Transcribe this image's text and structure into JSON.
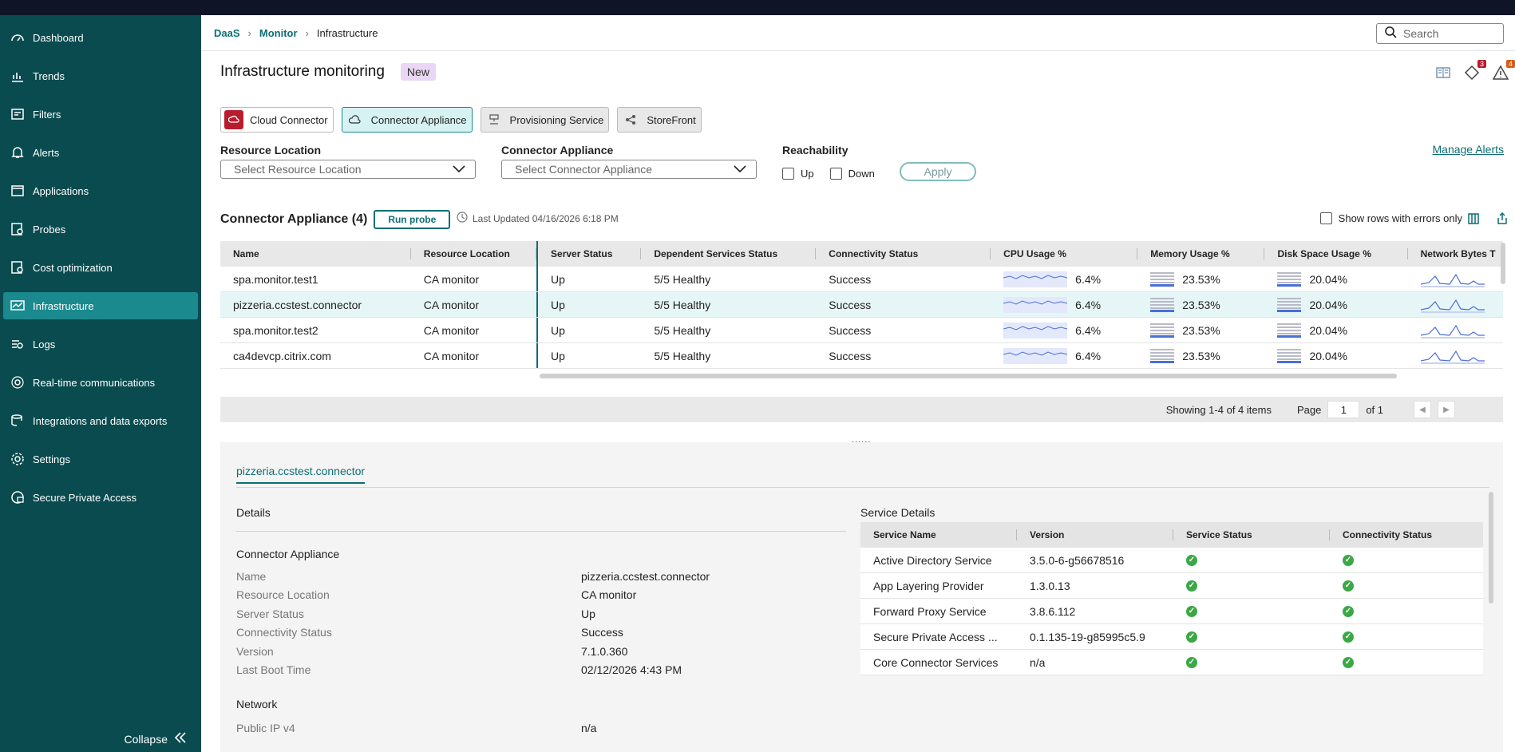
{
  "sidebar": {
    "items": [
      {
        "label": "Dashboard",
        "icon": "dashboard-icon"
      },
      {
        "label": "Trends",
        "icon": "trends-icon"
      },
      {
        "label": "Filters",
        "icon": "filters-icon"
      },
      {
        "label": "Alerts",
        "icon": "bell-icon"
      },
      {
        "label": "Applications",
        "icon": "applications-icon"
      },
      {
        "label": "Probes",
        "icon": "probes-icon"
      },
      {
        "label": "Cost optimization",
        "icon": "cost-icon"
      },
      {
        "label": "Infrastructure",
        "icon": "infrastructure-icon"
      },
      {
        "label": "Logs",
        "icon": "logs-icon"
      },
      {
        "label": "Real-time communications",
        "icon": "rtc-icon"
      },
      {
        "label": "Integrations and data exports",
        "icon": "integrations-icon"
      },
      {
        "label": "Settings",
        "icon": "gear-icon"
      },
      {
        "label": "Secure Private Access",
        "icon": "spa-icon"
      }
    ],
    "collapse_label": "Collapse"
  },
  "breadcrumb": {
    "items": [
      "DaaS",
      "Monitor",
      "Infrastructure"
    ]
  },
  "search": {
    "placeholder": "Search"
  },
  "header": {
    "title": "Infrastructure monitoring",
    "badge": "New",
    "notif_count": "3",
    "alert_count": "4"
  },
  "tabs": [
    "Cloud Connector",
    "Connector Appliance",
    "Provisioning Service",
    "StoreFront"
  ],
  "filters": {
    "resource_location": {
      "label": "Resource Location",
      "placeholder": "Select Resource Location"
    },
    "connector_appliance": {
      "label": "Connector Appliance",
      "placeholder": "Select Connector Appliance"
    },
    "reachability": {
      "label": "Reachability",
      "up": "Up",
      "down": "Down"
    },
    "apply": "Apply",
    "manage_alerts": "Manage Alerts"
  },
  "section": {
    "title": "Connector Appliance (4)",
    "run_probe": "Run probe",
    "last_updated": "Last Updated 04/16/2026 6:18 PM",
    "show_errors": "Show rows with errors only"
  },
  "table": {
    "columns": [
      "Name",
      "Resource Location",
      "Server Status",
      "Dependent Services Status",
      "Connectivity Status",
      "CPU Usage %",
      "Memory Usage %",
      "Disk Space Usage %",
      "Network Bytes T"
    ],
    "rows": [
      {
        "name": "spa.monitor.test1",
        "location": "CA monitor",
        "server": "Up",
        "dependent": "5/5 Healthy",
        "connectivity": "Success",
        "cpu": "6.4%",
        "memory": "23.53%",
        "disk": "20.04%"
      },
      {
        "name": "pizzeria.ccstest.connector",
        "location": "CA monitor",
        "server": "Up",
        "dependent": "5/5 Healthy",
        "connectivity": "Success",
        "cpu": "6.4%",
        "memory": "23.53%",
        "disk": "20.04%"
      },
      {
        "name": "spa.monitor.test2",
        "location": "CA monitor",
        "server": "Up",
        "dependent": "5/5 Healthy",
        "connectivity": "Success",
        "cpu": "6.4%",
        "memory": "23.53%",
        "disk": "20.04%"
      },
      {
        "name": "ca4devcp.citrix.com",
        "location": "CA monitor",
        "server": "Up",
        "dependent": "5/5 Healthy",
        "connectivity": "Success",
        "cpu": "6.4%",
        "memory": "23.53%",
        "disk": "20.04%"
      }
    ]
  },
  "pager": {
    "showing": "Showing 1-4 of 4 items",
    "page_label": "Page",
    "page": "1",
    "of": "of 1"
  },
  "detail": {
    "tab": "pizzeria.ccstest.connector",
    "details_title": "Details",
    "group_title": "Connector Appliance",
    "fields": [
      {
        "k": "Name",
        "v": "pizzeria.ccstest.connector"
      },
      {
        "k": "Resource Location",
        "v": "CA monitor"
      },
      {
        "k": "Server Status",
        "v": "Up"
      },
      {
        "k": "Connectivity Status",
        "v": "Success"
      },
      {
        "k": "Version",
        "v": "7.1.0.360"
      },
      {
        "k": "Last Boot Time",
        "v": "02/12/2026 4:43 PM"
      }
    ],
    "network_title": "Network",
    "network_fields": [
      {
        "k": "Public IP v4",
        "v": "n/a"
      }
    ],
    "service_title": "Service Details",
    "service_columns": [
      "Service Name",
      "Version",
      "Service Status",
      "Connectivity Status"
    ],
    "services": [
      {
        "name": "Active Directory Service",
        "version": "3.5.0-6-g56678516"
      },
      {
        "name": "App Layering Provider",
        "version": "1.3.0.13"
      },
      {
        "name": "Forward Proxy Service",
        "version": "3.8.6.112"
      },
      {
        "name": "Secure Private Access ...",
        "version": "0.1.135-19-g85995c5.9"
      },
      {
        "name": "Core Connector Services",
        "version": "n/a"
      }
    ]
  },
  "colors": {
    "sidebar": "#0a4b4f",
    "accent": "#0e6e74",
    "active_nav": "#1a8a8f",
    "ok": "#3aa845"
  }
}
